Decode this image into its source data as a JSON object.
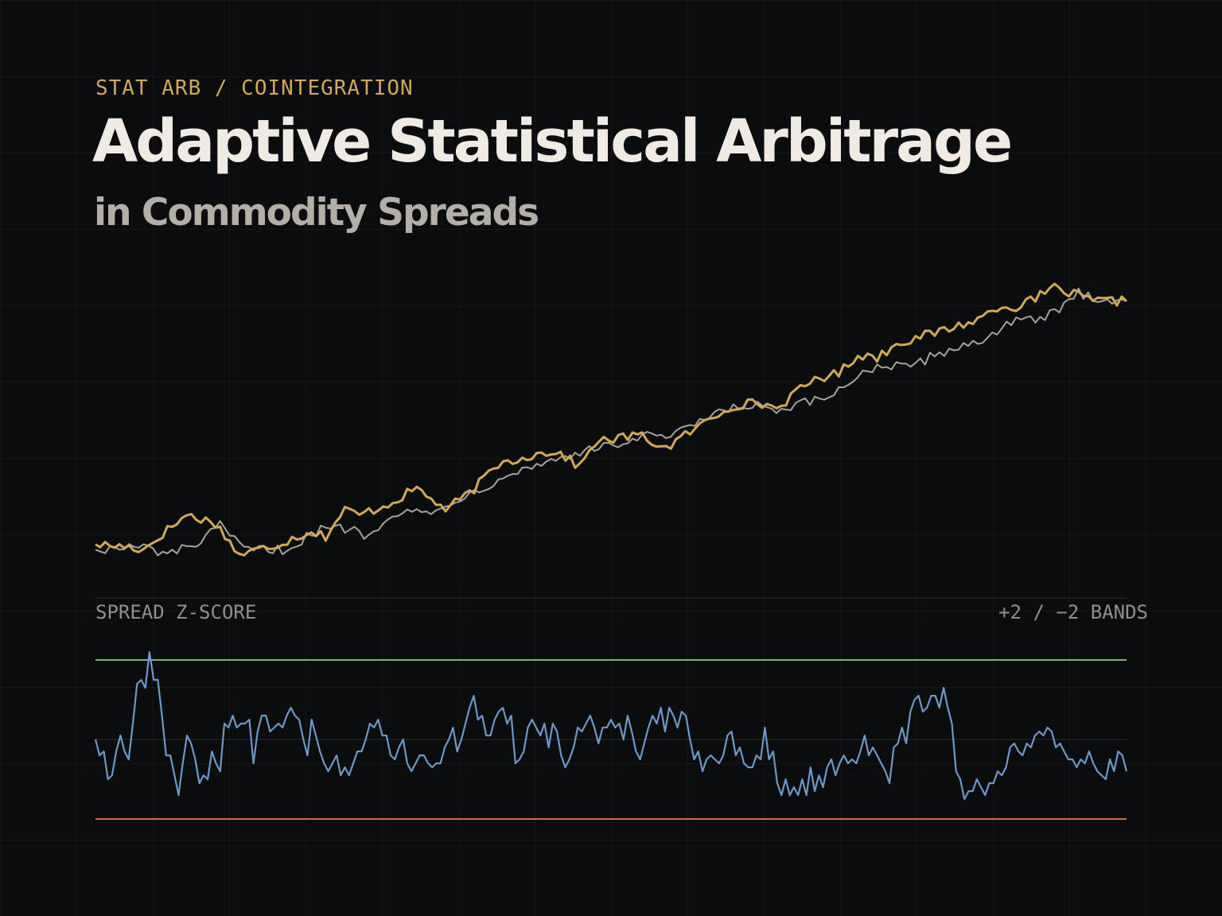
{
  "header": {
    "eyebrow": "STAT ARB / COINTEGRATION",
    "title": "Adaptive Statistical Arbitrage",
    "subtitle": "in Commodity Spreads"
  },
  "colors": {
    "background": "#0b0c0e",
    "gold_series": "#d1a85a",
    "grey_series": "#a7a39c",
    "zscore_line": "#6d97c7",
    "upper_band": "#79b67f",
    "lower_band": "#d06a52",
    "divider": "#2b2d30"
  },
  "chart_data": [
    {
      "type": "line",
      "title": "",
      "xlabel": "",
      "ylabel": "",
      "axes_visible": false,
      "grid": true,
      "legend": "none",
      "xlim": [
        0,
        215
      ],
      "ylim": [
        0,
        100
      ],
      "series": [
        {
          "color": "gold_series",
          "anchors": [
            [
              0,
              4
            ],
            [
              7,
              3
            ],
            [
              10,
              2
            ],
            [
              14,
              8
            ],
            [
              19,
              15
            ],
            [
              25,
              12
            ],
            [
              30,
              0
            ],
            [
              38,
              4
            ],
            [
              45,
              9
            ],
            [
              48,
              7
            ],
            [
              52,
              17
            ],
            [
              55,
              15
            ],
            [
              61,
              19
            ],
            [
              67,
              25
            ],
            [
              73,
              17
            ],
            [
              78,
              23
            ],
            [
              84,
              34
            ],
            [
              90,
              37
            ],
            [
              96,
              39
            ],
            [
              101,
              33
            ],
            [
              104,
              42
            ],
            [
              113,
              45
            ],
            [
              119,
              40
            ],
            [
              124,
              46
            ],
            [
              130,
              53
            ],
            [
              133,
              56
            ],
            [
              138,
              57
            ],
            [
              142,
              55
            ],
            [
              150,
              66
            ],
            [
              155,
              68
            ],
            [
              159,
              75
            ],
            [
              163,
              74
            ],
            [
              168,
              80
            ],
            [
              175,
              83
            ],
            [
              180,
              86
            ],
            [
              184,
              88
            ],
            [
              188,
              93
            ],
            [
              193,
              93
            ],
            [
              200,
              100
            ],
            [
              208,
              95
            ],
            [
              215,
              95
            ]
          ]
        },
        {
          "color": "grey_series",
          "anchors": [
            [
              0,
              2
            ],
            [
              10,
              3
            ],
            [
              15,
              0
            ],
            [
              22,
              5
            ],
            [
              26,
              11
            ],
            [
              31,
              2
            ],
            [
              40,
              2
            ],
            [
              45,
              8
            ],
            [
              48,
              10
            ],
            [
              53,
              10
            ],
            [
              57,
              7
            ],
            [
              61,
              15
            ],
            [
              65,
              17
            ],
            [
              70,
              15
            ],
            [
              75,
              21
            ],
            [
              80,
              24
            ],
            [
              85,
              30
            ],
            [
              91,
              33
            ],
            [
              96,
              36
            ],
            [
              100,
              38
            ],
            [
              105,
              40
            ],
            [
              110,
              42
            ],
            [
              116,
              45
            ],
            [
              120,
              44
            ],
            [
              126,
              50
            ],
            [
              133,
              55
            ],
            [
              138,
              56
            ],
            [
              142,
              53
            ],
            [
              148,
              57
            ],
            [
              152,
              58
            ],
            [
              158,
              66
            ],
            [
              163,
              71
            ],
            [
              170,
              70
            ],
            [
              175,
              75
            ],
            [
              180,
              78
            ],
            [
              185,
              80
            ],
            [
              190,
              87
            ],
            [
              197,
              88
            ],
            [
              202,
              93
            ],
            [
              205,
              98
            ],
            [
              210,
              96
            ],
            [
              215,
              95
            ]
          ]
        }
      ]
    },
    {
      "type": "line",
      "title": "SPREAD Z-SCORE",
      "annotation": "+2 / −2 BANDS",
      "xlabel": "",
      "ylabel": "",
      "grid": true,
      "legend": "none",
      "xlim": [
        0,
        215
      ],
      "ylim": [
        -2,
        2
      ],
      "bands": [
        {
          "value": 2,
          "color": "upper_band"
        },
        {
          "value": 0,
          "color": "divider"
        },
        {
          "value": -2,
          "color": "lower_band"
        }
      ],
      "series": [
        {
          "color": "zscore_line",
          "values": [
            0.0,
            -0.4,
            -0.3,
            -1.0,
            -0.9,
            -0.3,
            0.1,
            -0.3,
            -0.5,
            0.4,
            1.4,
            1.5,
            1.3,
            2.2,
            1.5,
            1.5,
            0.6,
            -0.4,
            -0.4,
            -0.9,
            -1.4,
            -0.6,
            0.1,
            -0.1,
            -0.5,
            -1.1,
            -0.9,
            -1.0,
            -0.3,
            -0.6,
            -0.8,
            0.4,
            0.3,
            0.6,
            0.3,
            0.4,
            0.4,
            0.5,
            -0.6,
            0.2,
            0.6,
            0.6,
            0.2,
            0.3,
            0.4,
            0.3,
            0.6,
            0.8,
            0.6,
            0.5,
            0.0,
            -0.4,
            0.5,
            0.1,
            -0.3,
            -0.6,
            -0.8,
            -0.6,
            -0.4,
            -0.9,
            -0.7,
            -0.9,
            -0.6,
            -0.3,
            -0.3,
            0.0,
            0.4,
            0.3,
            0.5,
            0.1,
            0.1,
            -0.4,
            -0.5,
            -0.2,
            0.0,
            -0.6,
            -0.8,
            -0.6,
            -0.4,
            -0.4,
            -0.6,
            -0.7,
            -0.6,
            -0.6,
            -0.2,
            0.0,
            0.3,
            -0.3,
            0.0,
            0.4,
            0.8,
            1.1,
            0.5,
            0.6,
            0.1,
            0.1,
            0.5,
            0.7,
            0.8,
            0.4,
            0.6,
            -0.6,
            -0.5,
            -0.3,
            0.3,
            0.5,
            0.3,
            0.1,
            0.4,
            -0.2,
            0.4,
            0.2,
            -0.4,
            -0.7,
            -0.5,
            -0.2,
            0.3,
            0.2,
            0.4,
            0.6,
            0.3,
            -0.1,
            0.3,
            0.3,
            0.5,
            0.3,
            0.4,
            0.0,
            0.6,
            0.2,
            -0.3,
            -0.5,
            -0.1,
            0.3,
            0.6,
            0.4,
            0.8,
            0.2,
            0.8,
            0.6,
            0.3,
            0.7,
            0.6,
            0.0,
            -0.5,
            -0.3,
            -0.8,
            -0.5,
            -0.4,
            -0.5,
            -0.6,
            -0.4,
            0.1,
            0.2,
            -0.4,
            -0.2,
            -0.6,
            -0.7,
            -0.7,
            -0.4,
            -0.5,
            0.3,
            -0.5,
            -0.3,
            -1.1,
            -1.4,
            -1.0,
            -1.4,
            -1.2,
            -1.4,
            -1.0,
            -1.4,
            -0.7,
            -1.3,
            -0.9,
            -1.2,
            -0.7,
            -0.5,
            -0.9,
            -0.6,
            -0.4,
            -0.6,
            -0.5,
            -0.6,
            -0.3,
            0.1,
            -0.4,
            -0.2,
            -0.4,
            -0.6,
            -0.8,
            -1.1,
            -0.2,
            -0.1,
            0.3,
            -0.1,
            0.7,
            1.0,
            1.1,
            0.7,
            0.8,
            1.1,
            1.1,
            0.8,
            1.3,
            0.8,
            0.4,
            -0.8,
            -1.0,
            -1.5,
            -1.3,
            -1.3,
            -1.0,
            -1.2,
            -1.4,
            -1.1,
            -1.1,
            -0.8,
            -0.9,
            -0.7,
            -0.2,
            -0.1,
            -0.3,
            -0.4,
            -0.1,
            -0.2,
            0.1,
            0.2,
            0.1,
            0.3,
            0.2,
            -0.2,
            -0.1,
            -0.3,
            -0.5,
            -0.5,
            -0.7,
            -0.5,
            -0.6,
            -0.3,
            -0.6,
            -0.8,
            -0.9,
            -1.0,
            -0.5,
            -0.8,
            -0.3,
            -0.4,
            -0.8
          ]
        }
      ]
    }
  ]
}
